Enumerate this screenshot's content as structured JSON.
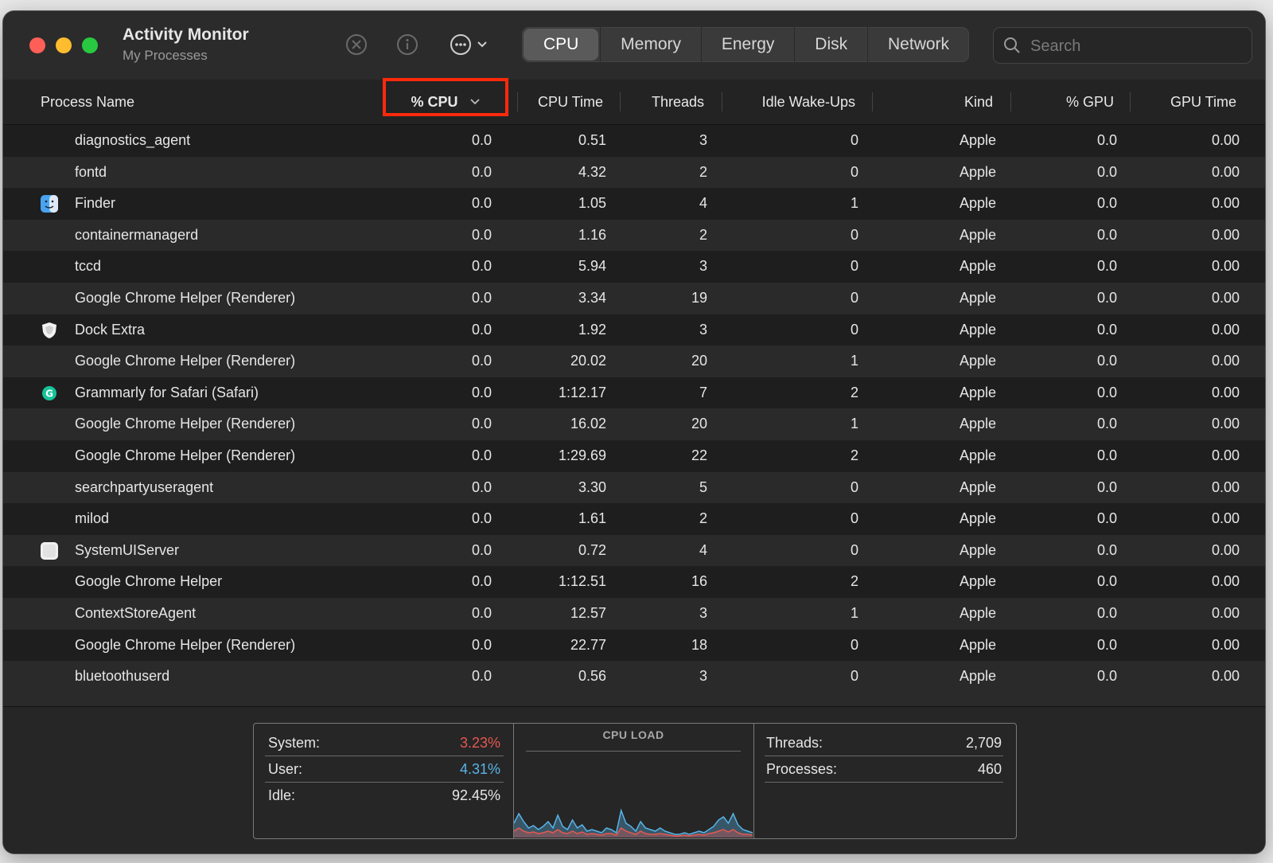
{
  "window": {
    "title": "Activity Monitor",
    "subtitle": "My Processes"
  },
  "toolbar": {
    "stop_icon": "stop-process-icon",
    "info_icon": "info-icon",
    "more_icon": "more-actions-icon"
  },
  "tabs": [
    {
      "label": "CPU",
      "active": true
    },
    {
      "label": "Memory",
      "active": false
    },
    {
      "label": "Energy",
      "active": false
    },
    {
      "label": "Disk",
      "active": false
    },
    {
      "label": "Network",
      "active": false
    }
  ],
  "search": {
    "placeholder": "Search",
    "value": ""
  },
  "columns": {
    "name": "Process Name",
    "cpu": "% CPU",
    "cpu_time": "CPU Time",
    "threads": "Threads",
    "idle": "Idle Wake-Ups",
    "kind": "Kind",
    "gpu": "% GPU",
    "gpu_time": "GPU Time"
  },
  "sort": {
    "column": "% CPU",
    "direction": "descending",
    "highlight_color": "#ff2a0c"
  },
  "rows": [
    {
      "name": "diagnostics_agent",
      "icon": "",
      "cpu": "0.0",
      "cpu_time": "0.51",
      "threads": "3",
      "idle": "0",
      "kind": "Apple",
      "gpu": "0.0",
      "gpu_time": "0.00"
    },
    {
      "name": "fontd",
      "icon": "",
      "cpu": "0.0",
      "cpu_time": "4.32",
      "threads": "2",
      "idle": "0",
      "kind": "Apple",
      "gpu": "0.0",
      "gpu_time": "0.00"
    },
    {
      "name": "Finder",
      "icon": "finder-icon",
      "cpu": "0.0",
      "cpu_time": "1.05",
      "threads": "4",
      "idle": "1",
      "kind": "Apple",
      "gpu": "0.0",
      "gpu_time": "0.00"
    },
    {
      "name": "containermanagerd",
      "icon": "",
      "cpu": "0.0",
      "cpu_time": "1.16",
      "threads": "2",
      "idle": "0",
      "kind": "Apple",
      "gpu": "0.0",
      "gpu_time": "0.00"
    },
    {
      "name": "tccd",
      "icon": "",
      "cpu": "0.0",
      "cpu_time": "5.94",
      "threads": "3",
      "idle": "0",
      "kind": "Apple",
      "gpu": "0.0",
      "gpu_time": "0.00"
    },
    {
      "name": "Google Chrome Helper (Renderer)",
      "icon": "",
      "cpu": "0.0",
      "cpu_time": "3.34",
      "threads": "19",
      "idle": "0",
      "kind": "Apple",
      "gpu": "0.0",
      "gpu_time": "0.00"
    },
    {
      "name": "Dock Extra",
      "icon": "shield-icon",
      "cpu": "0.0",
      "cpu_time": "1.92",
      "threads": "3",
      "idle": "0",
      "kind": "Apple",
      "gpu": "0.0",
      "gpu_time": "0.00"
    },
    {
      "name": "Google Chrome Helper (Renderer)",
      "icon": "",
      "cpu": "0.0",
      "cpu_time": "20.02",
      "threads": "20",
      "idle": "1",
      "kind": "Apple",
      "gpu": "0.0",
      "gpu_time": "0.00"
    },
    {
      "name": "Grammarly for Safari (Safari)",
      "icon": "grammarly-icon",
      "cpu": "0.0",
      "cpu_time": "1:12.17",
      "threads": "7",
      "idle": "2",
      "kind": "Apple",
      "gpu": "0.0",
      "gpu_time": "0.00"
    },
    {
      "name": "Google Chrome Helper (Renderer)",
      "icon": "",
      "cpu": "0.0",
      "cpu_time": "16.02",
      "threads": "20",
      "idle": "1",
      "kind": "Apple",
      "gpu": "0.0",
      "gpu_time": "0.00"
    },
    {
      "name": "Google Chrome Helper (Renderer)",
      "icon": "",
      "cpu": "0.0",
      "cpu_time": "1:29.69",
      "threads": "22",
      "idle": "2",
      "kind": "Apple",
      "gpu": "0.0",
      "gpu_time": "0.00"
    },
    {
      "name": "searchpartyuseragent",
      "icon": "",
      "cpu": "0.0",
      "cpu_time": "3.30",
      "threads": "5",
      "idle": "0",
      "kind": "Apple",
      "gpu": "0.0",
      "gpu_time": "0.00"
    },
    {
      "name": "milod",
      "icon": "",
      "cpu": "0.0",
      "cpu_time": "1.61",
      "threads": "2",
      "idle": "0",
      "kind": "Apple",
      "gpu": "0.0",
      "gpu_time": "0.00"
    },
    {
      "name": "SystemUIServer",
      "icon": "systemuiserver-icon",
      "cpu": "0.0",
      "cpu_time": "0.72",
      "threads": "4",
      "idle": "0",
      "kind": "Apple",
      "gpu": "0.0",
      "gpu_time": "0.00"
    },
    {
      "name": "Google Chrome Helper",
      "icon": "",
      "cpu": "0.0",
      "cpu_time": "1:12.51",
      "threads": "16",
      "idle": "2",
      "kind": "Apple",
      "gpu": "0.0",
      "gpu_time": "0.00"
    },
    {
      "name": "ContextStoreAgent",
      "icon": "",
      "cpu": "0.0",
      "cpu_time": "12.57",
      "threads": "3",
      "idle": "1",
      "kind": "Apple",
      "gpu": "0.0",
      "gpu_time": "0.00"
    },
    {
      "name": "Google Chrome Helper (Renderer)",
      "icon": "",
      "cpu": "0.0",
      "cpu_time": "22.77",
      "threads": "18",
      "idle": "0",
      "kind": "Apple",
      "gpu": "0.0",
      "gpu_time": "0.00"
    },
    {
      "name": "bluetoothuserd",
      "icon": "",
      "cpu": "0.0",
      "cpu_time": "0.56",
      "threads": "3",
      "idle": "0",
      "kind": "Apple",
      "gpu": "0.0",
      "gpu_time": "0.00"
    }
  ],
  "footer": {
    "system_label": "System:",
    "system_value": "3.23%",
    "system_color": "#e5584f",
    "user_label": "User:",
    "user_value": "4.31%",
    "user_color": "#58b4e8",
    "idle_label": "Idle:",
    "idle_value": "92.45%",
    "load_title": "CPU LOAD",
    "threads_label": "Threads:",
    "threads_value": "2,709",
    "processes_label": "Processes:",
    "processes_value": "460"
  },
  "chart_data": {
    "type": "area",
    "title": "CPU LOAD",
    "ylim": [
      0,
      100
    ],
    "series": [
      {
        "name": "User",
        "color": "#58b4e8",
        "values": [
          18,
          30,
          20,
          12,
          15,
          10,
          14,
          20,
          12,
          28,
          14,
          10,
          22,
          12,
          16,
          8,
          10,
          8,
          6,
          12,
          10,
          6,
          34,
          18,
          14,
          8,
          20,
          12,
          10,
          8,
          12,
          8,
          6,
          4,
          4,
          6,
          4,
          6,
          8,
          6,
          10,
          14,
          22,
          26,
          18,
          30,
          16,
          10,
          8,
          6
        ]
      },
      {
        "name": "System",
        "color": "#e5584f",
        "values": [
          8,
          12,
          8,
          6,
          7,
          5,
          6,
          8,
          6,
          10,
          6,
          5,
          8,
          5,
          7,
          4,
          5,
          4,
          3,
          5,
          5,
          3,
          12,
          8,
          6,
          4,
          8,
          5,
          4,
          4,
          5,
          4,
          3,
          2,
          2,
          3,
          2,
          3,
          4,
          3,
          5,
          6,
          8,
          10,
          7,
          10,
          6,
          4,
          4,
          3
        ]
      }
    ]
  }
}
